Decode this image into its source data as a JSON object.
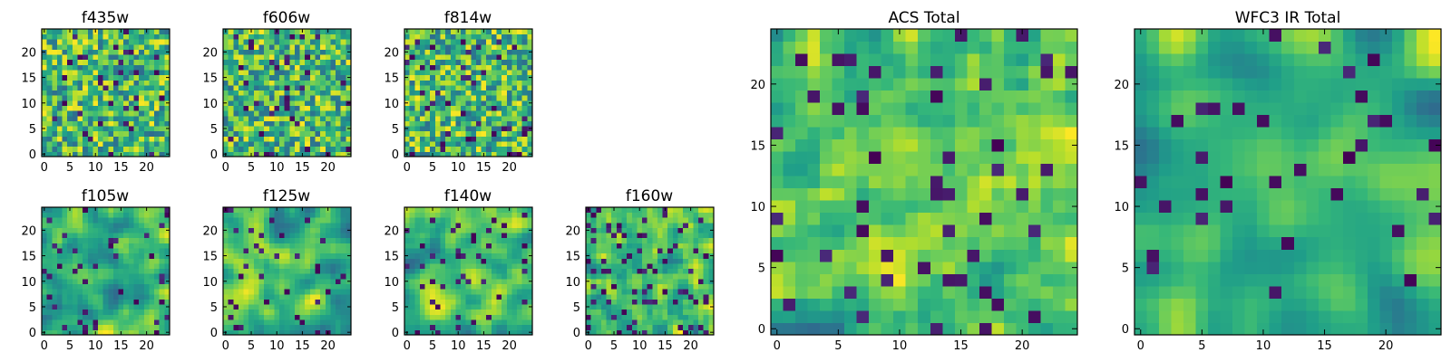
{
  "figure": {
    "colormap": "viridis",
    "background": "#ffffff"
  },
  "chart_data": [
    {
      "type": "heatmap",
      "title": "f435w",
      "grid": [
        25,
        25
      ],
      "xlim": [
        0,
        25
      ],
      "ylim": [
        0,
        25
      ],
      "xticks": [
        0,
        5,
        10,
        15,
        20
      ],
      "yticks": [
        0,
        5,
        10,
        15,
        20
      ],
      "pattern": "noise",
      "seed": 11,
      "smooth": 0,
      "dark_frac": 0.05
    },
    {
      "type": "heatmap",
      "title": "f606w",
      "grid": [
        25,
        25
      ],
      "xlim": [
        0,
        25
      ],
      "ylim": [
        0,
        25
      ],
      "xticks": [
        0,
        5,
        10,
        15,
        20
      ],
      "yticks": [
        0,
        5,
        10,
        15,
        20
      ],
      "pattern": "noise",
      "seed": 23,
      "smooth": 0,
      "dark_frac": 0.05
    },
    {
      "type": "heatmap",
      "title": "f814w",
      "grid": [
        25,
        25
      ],
      "xlim": [
        0,
        25
      ],
      "ylim": [
        0,
        25
      ],
      "xticks": [
        0,
        5,
        10,
        15,
        20
      ],
      "yticks": [
        0,
        5,
        10,
        15,
        20
      ],
      "pattern": "noise",
      "seed": 37,
      "smooth": 0,
      "dark_frac": 0.05
    },
    {
      "type": "heatmap",
      "title": "f105w",
      "grid": [
        25,
        25
      ],
      "xlim": [
        0,
        25
      ],
      "ylim": [
        0,
        25
      ],
      "xticks": [
        0,
        5,
        10,
        15,
        20
      ],
      "yticks": [
        0,
        5,
        10,
        15,
        20
      ],
      "pattern": "smooth",
      "seed": 41,
      "smooth": 2,
      "dark_frac": 0.06
    },
    {
      "type": "heatmap",
      "title": "f125w",
      "grid": [
        25,
        25
      ],
      "xlim": [
        0,
        25
      ],
      "ylim": [
        0,
        25
      ],
      "xticks": [
        0,
        5,
        10,
        15,
        20
      ],
      "yticks": [
        0,
        5,
        10,
        15,
        20
      ],
      "pattern": "smooth",
      "seed": 53,
      "smooth": 2,
      "dark_frac": 0.06
    },
    {
      "type": "heatmap",
      "title": "f140w",
      "grid": [
        25,
        25
      ],
      "xlim": [
        0,
        25
      ],
      "ylim": [
        0,
        25
      ],
      "xticks": [
        0,
        5,
        10,
        15,
        20
      ],
      "yticks": [
        0,
        5,
        10,
        15,
        20
      ],
      "pattern": "smooth",
      "seed": 67,
      "smooth": 2,
      "dark_frac": 0.07
    },
    {
      "type": "heatmap",
      "title": "f160w",
      "grid": [
        25,
        25
      ],
      "xlim": [
        0,
        25
      ],
      "ylim": [
        0,
        25
      ],
      "xticks": [
        0,
        5,
        10,
        15,
        20
      ],
      "yticks": [
        0,
        5,
        10,
        15,
        20
      ],
      "pattern": "smooth",
      "seed": 79,
      "smooth": 1,
      "dark_frac": 0.12
    },
    {
      "type": "heatmap",
      "title": "ACS Total",
      "grid": [
        25,
        25
      ],
      "xlim": [
        0,
        25
      ],
      "ylim": [
        0,
        25
      ],
      "xticks": [
        0,
        5,
        10,
        15,
        20
      ],
      "yticks": [
        0,
        5,
        10,
        15,
        20
      ],
      "pattern": "noise",
      "seed": 97,
      "smooth": 1,
      "dark_frac": 0.06
    },
    {
      "type": "heatmap",
      "title": "WFC3 IR Total",
      "grid": [
        25,
        25
      ],
      "xlim": [
        0,
        25
      ],
      "ylim": [
        0,
        25
      ],
      "xticks": [
        0,
        5,
        10,
        15,
        20
      ],
      "yticks": [
        0,
        5,
        10,
        15,
        20
      ],
      "pattern": "smooth",
      "seed": 113,
      "smooth": 3,
      "dark_frac": 0.05
    }
  ]
}
